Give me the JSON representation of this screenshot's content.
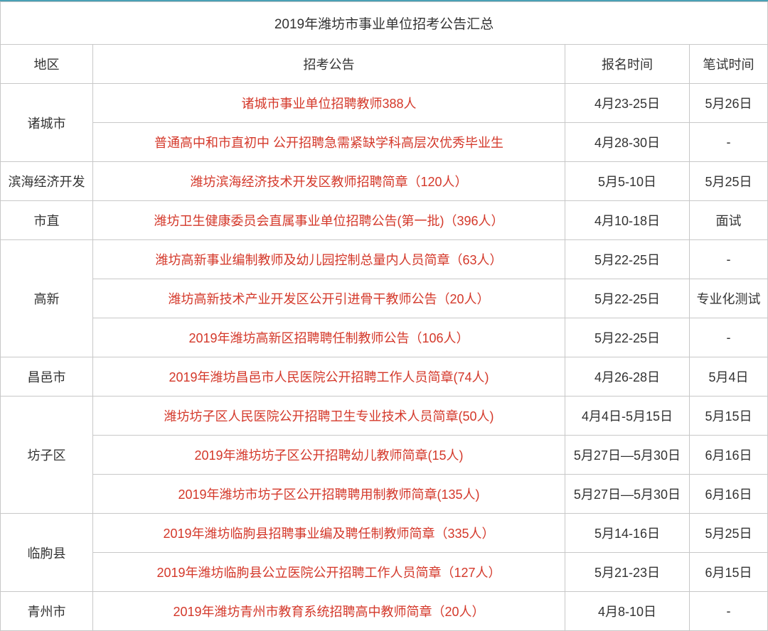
{
  "title": "2019年潍坊市事业单位招考公告汇总",
  "headers": {
    "region": "地区",
    "notice": "招考公告",
    "signup": "报名时间",
    "exam": "笔试时间"
  },
  "colors": {
    "topBorder": "#4aa0b5",
    "cellBorder": "#c8c8c8",
    "linkText": "#d4382a",
    "normalText": "#333333",
    "background": "#ffffff"
  },
  "groups": [
    {
      "region": "诸城市",
      "rows": [
        {
          "notice": "诸城市事业单位招聘教师388人",
          "signup": "4月23-25日",
          "exam": "5月26日"
        },
        {
          "notice": "普通高中和市直初中 公开招聘急需紧缺学科高层次优秀毕业生",
          "signup": "4月28-30日",
          "exam": "-"
        }
      ]
    },
    {
      "region": "滨海经济开发",
      "rows": [
        {
          "notice": "潍坊滨海经济技术开发区教师招聘简章（120人）",
          "signup": "5月5-10日",
          "exam": "5月25日"
        }
      ]
    },
    {
      "region": "市直",
      "rows": [
        {
          "notice": "潍坊卫生健康委员会直属事业单位招聘公告(第一批)（396人）",
          "signup": "4月10-18日",
          "exam": "面试"
        }
      ]
    },
    {
      "region": "高新",
      "rows": [
        {
          "notice": "潍坊高新事业编制教师及幼儿园控制总量内人员简章（63人）",
          "signup": "5月22-25日",
          "exam": "-"
        },
        {
          "notice": "潍坊高新技术产业开发区公开引进骨干教师公告（20人）",
          "signup": "5月22-25日",
          "exam": "专业化测试"
        },
        {
          "notice": "2019年潍坊高新区招聘聘任制教师公告（106人）",
          "signup": "5月22-25日",
          "exam": "-"
        }
      ]
    },
    {
      "region": "昌邑市",
      "rows": [
        {
          "notice": "2019年潍坊昌邑市人民医院公开招聘工作人员简章(74人)",
          "signup": "4月26-28日",
          "exam": "5月4日"
        }
      ]
    },
    {
      "region": "坊子区",
      "rows": [
        {
          "notice": "潍坊坊子区人民医院公开招聘卫生专业技术人员简章(50人)",
          "signup": "4月4日-5月15日",
          "exam": "5月15日"
        },
        {
          "notice": "2019年潍坊坊子区公开招聘幼儿教师简章(15人)",
          "signup": "5月27日—5月30日",
          "exam": "6月16日"
        },
        {
          "notice": "2019年潍坊市坊子区公开招聘聘用制教师简章(135人)",
          "signup": "5月27日—5月30日",
          "exam": "6月16日"
        }
      ]
    },
    {
      "region": "临朐县",
      "rows": [
        {
          "notice": "2019年潍坊临朐县招聘事业编及聘任制教师简章（335人）",
          "signup": "5月14-16日",
          "exam": "5月25日"
        },
        {
          "notice": "2019年潍坊临朐县公立医院公开招聘工作人员简章（127人）",
          "signup": "5月21-23日",
          "exam": "6月15日"
        }
      ]
    },
    {
      "region": "青州市",
      "rows": [
        {
          "notice": "2019年潍坊青州市教育系统招聘高中教师简章（20人）",
          "signup": "4月8-10日",
          "exam": "-"
        }
      ]
    }
  ]
}
